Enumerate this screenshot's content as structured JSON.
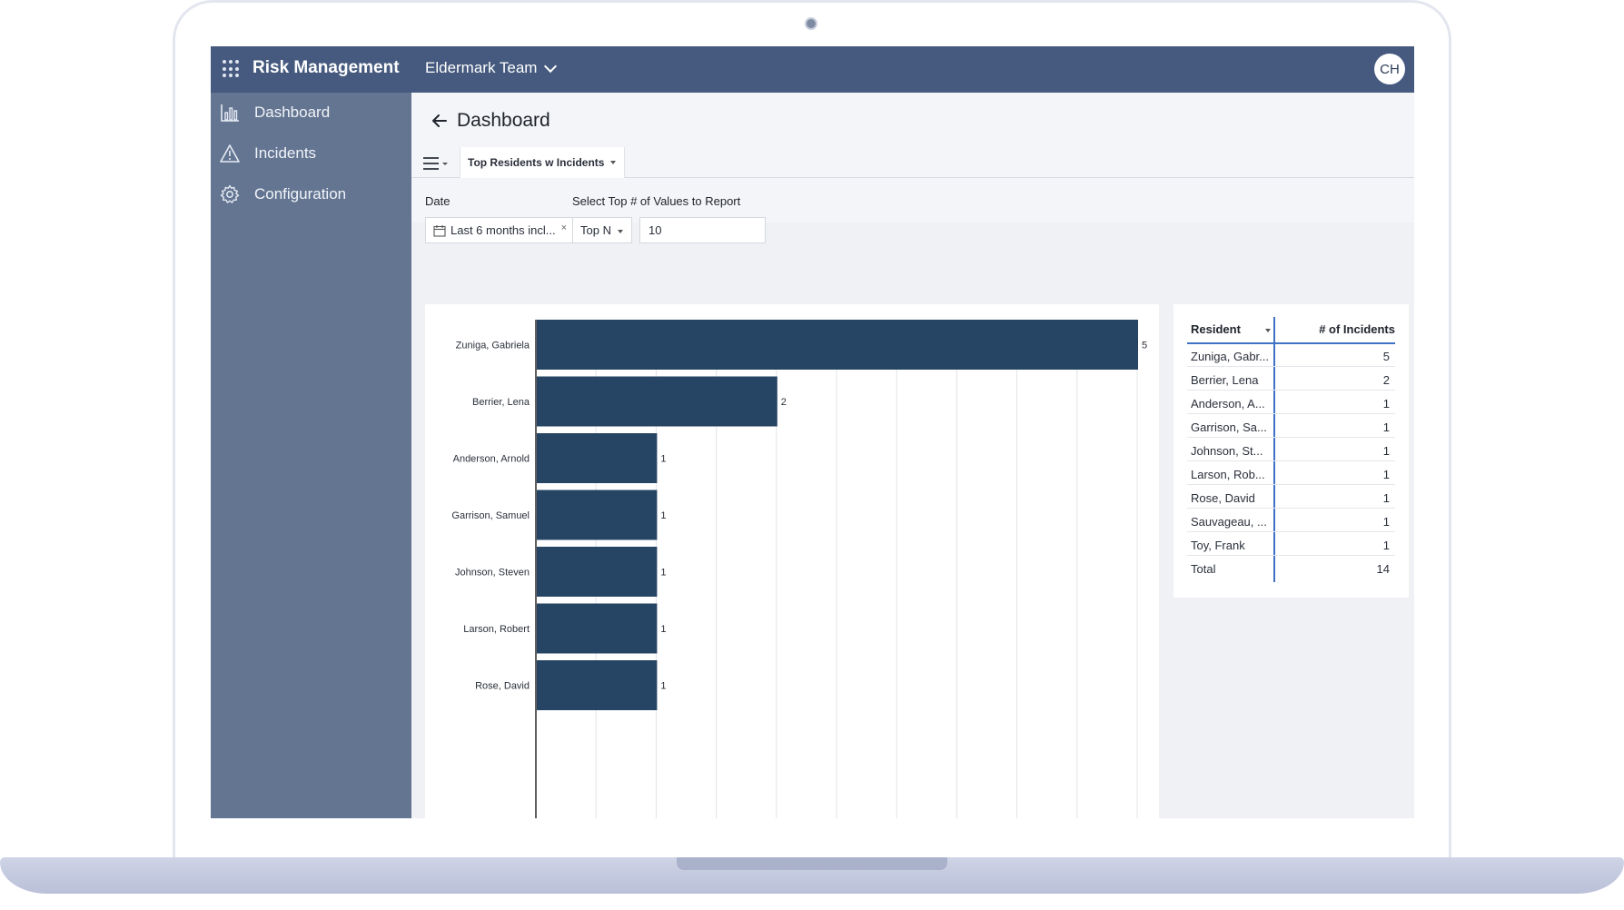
{
  "app": {
    "title": "Risk Management",
    "team": "Eldermark Team",
    "user_initials": "CH"
  },
  "sidebar": {
    "items": [
      {
        "label": "Dashboard",
        "icon": "bar-chart-icon"
      },
      {
        "label": "Incidents",
        "icon": "warning-icon"
      },
      {
        "label": "Configuration",
        "icon": "gear-icon"
      }
    ]
  },
  "page": {
    "title": "Dashboard",
    "report_tab": "Top Residents w Incidents"
  },
  "filters": {
    "date_label": "Date",
    "date_value": "Last 6 months incl...",
    "topn_label": "Select Top # of Values to Report",
    "topn_mode": "Top N",
    "topn_value": "10"
  },
  "chart_data": {
    "type": "bar",
    "orientation": "horizontal",
    "categories": [
      "Zuniga, Gabriela",
      "Berrier, Lena",
      "Anderson, Arnold",
      "Garrison, Samuel",
      "Johnson, Steven",
      "Larson, Robert",
      "Rose, David"
    ],
    "values": [
      5,
      2,
      1,
      1,
      1,
      1,
      1
    ],
    "xlim": [
      0,
      5
    ],
    "grid": true,
    "colors": {
      "bar": "#264463",
      "grid": "#e2e4e8",
      "axis": "#2a2a2a"
    }
  },
  "table": {
    "col_resident": "Resident",
    "col_count": "# of Incidents",
    "rows": [
      {
        "name": "Zuniga, Gabr...",
        "count": "5"
      },
      {
        "name": "Berrier, Lena",
        "count": "2"
      },
      {
        "name": "Anderson, A...",
        "count": "1"
      },
      {
        "name": "Garrison, Sa...",
        "count": "1"
      },
      {
        "name": "Johnson, St...",
        "count": "1"
      },
      {
        "name": "Larson, Rob...",
        "count": "1"
      },
      {
        "name": "Rose, David",
        "count": "1"
      },
      {
        "name": "Sauvageau, ...",
        "count": "1"
      },
      {
        "name": "Toy, Frank",
        "count": "1"
      },
      {
        "name": "Total",
        "count": "14"
      }
    ]
  },
  "colors": {
    "topbar": "#455a7e",
    "sidebar": "#647592",
    "accent": "#3f71c4"
  }
}
